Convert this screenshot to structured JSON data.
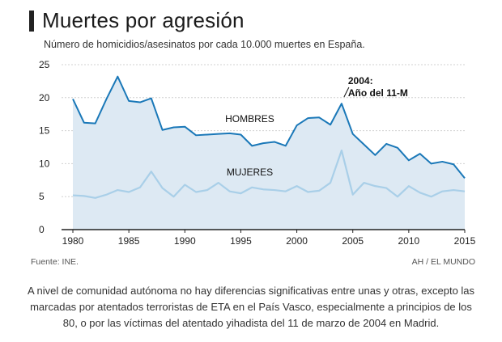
{
  "title": "Muertes por agresión",
  "subtitle": "Número de homicidios/asesinatos por cada 10.000 muertes en España.",
  "source": "Fuente: INE.",
  "credit": "AH / EL MUNDO",
  "caption": "A nivel de comunidad autónoma no hay diferencias significativas entre unas y otras, excepto las marcadas por atentados terroristas de ETA en el País Vasco, especialmente a principios de los 80, o por las víctimas del atentado yihadista del 11 de marzo de 2004 en Madrid.",
  "annotation": {
    "line1": "2004:",
    "line2": "Año del 11-M",
    "year": 2004
  },
  "colors": {
    "hombres_line": "#1a78b8",
    "mujeres_line": "#a9cfe8",
    "area": "#dde9f3",
    "axis": "#222222",
    "grid": "#d0d0d0"
  },
  "chart_data": {
    "type": "area",
    "xlim": [
      1980,
      2015
    ],
    "ylim": [
      0,
      25
    ],
    "x_ticks": [
      1980,
      1985,
      1990,
      1995,
      2000,
      2005,
      2010,
      2015
    ],
    "y_ticks": [
      0,
      5,
      10,
      15,
      20,
      25
    ],
    "x": [
      1980,
      1981,
      1982,
      1983,
      1984,
      1985,
      1986,
      1987,
      1988,
      1989,
      1990,
      1991,
      1992,
      1993,
      1994,
      1995,
      1996,
      1997,
      1998,
      1999,
      2000,
      2001,
      2002,
      2003,
      2004,
      2005,
      2006,
      2007,
      2008,
      2009,
      2010,
      2011,
      2012,
      2013,
      2014,
      2015
    ],
    "series": [
      {
        "name": "HOMBRES",
        "values": [
          19.8,
          16.2,
          16.1,
          19.8,
          23.2,
          19.5,
          19.3,
          19.9,
          15.1,
          15.5,
          15.6,
          14.3,
          14.4,
          14.5,
          14.6,
          14.4,
          12.7,
          13.1,
          13.3,
          12.7,
          15.8,
          16.9,
          17.0,
          15.9,
          19.1,
          14.5,
          12.9,
          11.3,
          13.0,
          12.4,
          10.5,
          11.5,
          10.0,
          10.3,
          9.9,
          7.8
        ]
      },
      {
        "name": "MUJERES",
        "values": [
          5.2,
          5.1,
          4.8,
          5.3,
          6.0,
          5.7,
          6.4,
          8.8,
          6.3,
          5.0,
          6.8,
          5.7,
          6.0,
          7.1,
          5.8,
          5.5,
          6.4,
          6.1,
          6.0,
          5.8,
          6.6,
          5.7,
          5.9,
          7.1,
          12.0,
          5.3,
          7.1,
          6.6,
          6.3,
          5.0,
          6.6,
          5.6,
          5.0,
          5.8,
          6.0,
          5.8
        ]
      }
    ]
  }
}
